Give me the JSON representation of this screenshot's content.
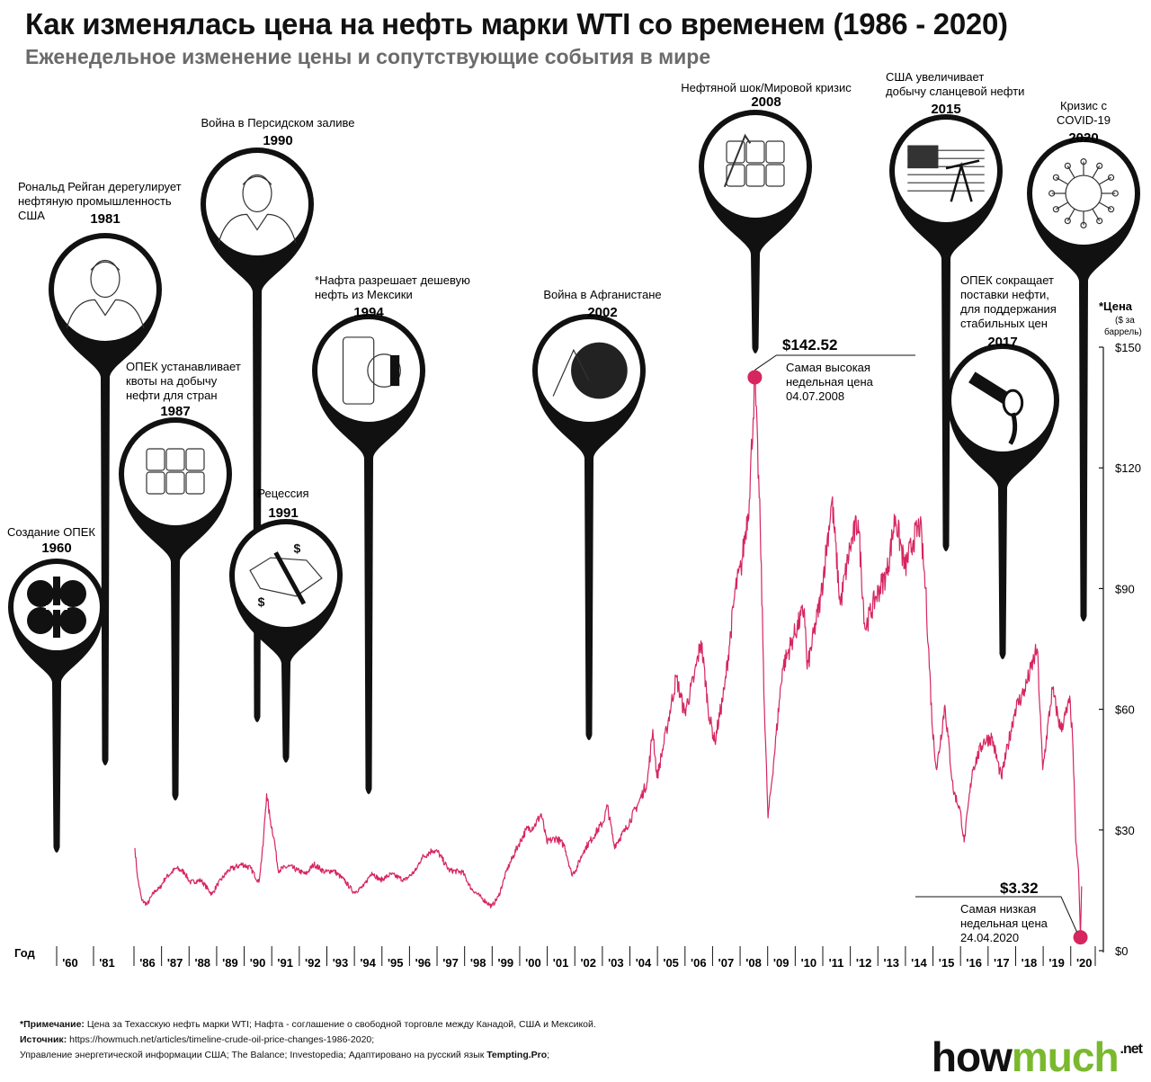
{
  "title": "Как изменялась цена на нефть марки WTI со временем (1986 - 2020)",
  "subtitle": "Еженедельное изменение цены и сопутствующие события в мире",
  "colors": {
    "line": "#d6265f",
    "pin": "#111111",
    "accent_green": "#7ab92e"
  },
  "y_axis": {
    "title": "*Цена",
    "unit": "($ за баррель)",
    "ticks": [
      "$150",
      "$120",
      "$90",
      "$60",
      "$30",
      "$0"
    ]
  },
  "x_axis": {
    "label": "Год",
    "ticks": [
      "'60",
      "'81",
      "'86",
      "'87",
      "'88",
      "'89",
      "'90",
      "'91",
      "'92",
      "'93",
      "'94",
      "'95",
      "'96",
      "'97",
      "'98",
      "'99",
      "'00",
      "'01",
      "'02",
      "'03",
      "'04",
      "'05",
      "'06",
      "'07",
      "'08",
      "'09",
      "'10",
      "'11",
      "'12",
      "'13",
      "'14",
      "'15",
      "'16",
      "'17",
      "'18",
      "'19",
      "'20"
    ]
  },
  "events": [
    {
      "year": "1960",
      "label": "Создание  ОПЕК",
      "icon": "opec-logo-icon"
    },
    {
      "year": "1981",
      "label": "Рональд Рейган дерегулирует нефтяную промышленность США",
      "icon": "reagan-portrait-icon"
    },
    {
      "year": "1987",
      "label": "ОПЕК устанавливает квоты на добычу нефти для стран",
      "icon": "oil-barrels-icon"
    },
    {
      "year": "1990",
      "label": "Война в Персидском заливе",
      "icon": "saddam-portrait-icon"
    },
    {
      "year": "1991",
      "label": "Рецессия",
      "icon": "recession-map-icon"
    },
    {
      "year": "1994",
      "label": "*Нафта разрешает дешевую нефть из Мексики",
      "icon": "mexico-barrel-icon"
    },
    {
      "year": "2002",
      "label": "Война в Афганистане",
      "icon": "afghan-war-icon"
    },
    {
      "year": "2008",
      "label": "Нефтяной шок/Мировой кризис",
      "icon": "stacked-barrels-icon"
    },
    {
      "year": "2015",
      "label": "США увеличивает добычу сланцевой нефти",
      "icon": "usa-pumpjack-icon"
    },
    {
      "year": "2017",
      "label": "ОПЕК сокращает поставки нефти, для поддержания стабильных цен",
      "icon": "pouring-barrel-icon"
    },
    {
      "year": "2020",
      "label": "Кризис с COVID-19",
      "icon": "virus-icon"
    }
  ],
  "annotations": {
    "high": {
      "value": "$142.52",
      "label": "Самая высокая недельная цена",
      "date": "04.07.2008"
    },
    "low": {
      "value": "$3.32",
      "label": "Самая низкая недельная цена",
      "date": "24.04.2020"
    }
  },
  "footer": {
    "note_label": "*Примечание:",
    "note": "Цена за Техасскую нефть марки WTI; Нафта - соглашение о свободной торговле между Канадой, США и Мексикой.",
    "source_label": "Источник:",
    "source": "https://howmuch.net/articles/timeline-crude-oil-price-changes-1986-2020;",
    "source2": "Управление энергетической информации США; The Balance; Investopedia; Адаптировано на русский язык ",
    "source2_bold": "Tempting.Pro",
    "source2_end": ";"
  },
  "logo": {
    "how": "how",
    "much": "much",
    "net": ".net"
  },
  "chart_data": {
    "type": "line",
    "title": "Как изменялась цена на нефть марки WTI со временем (1986 - 2020)",
    "ylabel": "*Цена ($ за баррель)",
    "xlabel": "Год",
    "ylim": [
      0,
      150
    ],
    "xlim": [
      1986,
      2020.4
    ],
    "series": [
      {
        "name": "WTI",
        "points": [
          [
            1986.0,
            25.5
          ],
          [
            1986.1,
            18.0
          ],
          [
            1986.25,
            12.5
          ],
          [
            1986.45,
            11.5
          ],
          [
            1986.6,
            13.5
          ],
          [
            1986.75,
            15.0
          ],
          [
            1986.9,
            15.5
          ],
          [
            1987.1,
            18.0
          ],
          [
            1987.5,
            20.5
          ],
          [
            1987.8,
            19.5
          ],
          [
            1988.0,
            17.0
          ],
          [
            1988.4,
            17.5
          ],
          [
            1988.8,
            14.0
          ],
          [
            1989.0,
            16.5
          ],
          [
            1989.4,
            20.0
          ],
          [
            1989.9,
            21.5
          ],
          [
            1990.2,
            20.5
          ],
          [
            1990.5,
            17.0
          ],
          [
            1990.65,
            26.0
          ],
          [
            1990.78,
            39.0
          ],
          [
            1990.9,
            33.0
          ],
          [
            1991.05,
            28.0
          ],
          [
            1991.2,
            20.0
          ],
          [
            1991.6,
            21.0
          ],
          [
            1991.9,
            20.0
          ],
          [
            1992.2,
            19.0
          ],
          [
            1992.5,
            21.5
          ],
          [
            1992.9,
            19.5
          ],
          [
            1993.2,
            20.0
          ],
          [
            1993.6,
            17.5
          ],
          [
            1993.95,
            14.5
          ],
          [
            1994.3,
            16.0
          ],
          [
            1994.6,
            19.5
          ],
          [
            1994.9,
            17.5
          ],
          [
            1995.3,
            19.0
          ],
          [
            1995.8,
            17.5
          ],
          [
            1996.2,
            20.0
          ],
          [
            1996.4,
            23.0
          ],
          [
            1996.8,
            25.0
          ],
          [
            1997.0,
            24.5
          ],
          [
            1997.4,
            20.0
          ],
          [
            1997.9,
            19.5
          ],
          [
            1998.2,
            15.5
          ],
          [
            1998.6,
            13.0
          ],
          [
            1998.95,
            11.0
          ],
          [
            1999.2,
            13.5
          ],
          [
            1999.5,
            20.0
          ],
          [
            1999.9,
            26.0
          ],
          [
            2000.2,
            30.0
          ],
          [
            2000.5,
            31.0
          ],
          [
            2000.75,
            34.0
          ],
          [
            2000.95,
            27.0
          ],
          [
            2001.3,
            28.0
          ],
          [
            2001.6,
            26.0
          ],
          [
            2001.85,
            19.0
          ],
          [
            2002.0,
            20.0
          ],
          [
            2002.3,
            25.0
          ],
          [
            2002.7,
            29.0
          ],
          [
            2003.0,
            32.0
          ],
          [
            2003.15,
            36.0
          ],
          [
            2003.4,
            26.0
          ],
          [
            2003.8,
            30.0
          ],
          [
            2004.3,
            37.0
          ],
          [
            2004.6,
            42.0
          ],
          [
            2004.8,
            55.0
          ],
          [
            2004.95,
            43.0
          ],
          [
            2005.3,
            55.0
          ],
          [
            2005.65,
            68.0
          ],
          [
            2005.95,
            59.0
          ],
          [
            2006.3,
            68.0
          ],
          [
            2006.55,
            77.0
          ],
          [
            2006.85,
            58.0
          ],
          [
            2007.05,
            52.0
          ],
          [
            2007.4,
            65.0
          ],
          [
            2007.8,
            90.0
          ],
          [
            2008.0,
            95.0
          ],
          [
            2008.3,
            112.0
          ],
          [
            2008.5,
            142.52
          ],
          [
            2008.7,
            105.0
          ],
          [
            2008.85,
            60.0
          ],
          [
            2008.98,
            33.0
          ],
          [
            2009.2,
            48.0
          ],
          [
            2009.5,
            70.0
          ],
          [
            2009.9,
            78.0
          ],
          [
            2010.3,
            85.0
          ],
          [
            2010.4,
            70.0
          ],
          [
            2010.9,
            88.0
          ],
          [
            2011.3,
            112.0
          ],
          [
            2011.6,
            86.0
          ],
          [
            2011.95,
            100.0
          ],
          [
            2012.25,
            107.0
          ],
          [
            2012.5,
            80.0
          ],
          [
            2012.9,
            88.0
          ],
          [
            2013.3,
            94.0
          ],
          [
            2013.6,
            108.0
          ],
          [
            2013.95,
            95.0
          ],
          [
            2014.25,
            102.0
          ],
          [
            2014.5,
            106.0
          ],
          [
            2014.7,
            90.0
          ],
          [
            2014.95,
            55.0
          ],
          [
            2015.1,
            45.0
          ],
          [
            2015.4,
            61.0
          ],
          [
            2015.7,
            40.0
          ],
          [
            2015.95,
            35.0
          ],
          [
            2016.1,
            27.0
          ],
          [
            2016.4,
            45.0
          ],
          [
            2016.8,
            52.0
          ],
          [
            2017.1,
            53.0
          ],
          [
            2017.45,
            43.0
          ],
          [
            2017.95,
            60.0
          ],
          [
            2018.3,
            65.0
          ],
          [
            2018.75,
            75.0
          ],
          [
            2018.95,
            45.0
          ],
          [
            2019.3,
            65.0
          ],
          [
            2019.6,
            55.0
          ],
          [
            2019.95,
            62.0
          ],
          [
            2020.05,
            50.0
          ],
          [
            2020.15,
            27.0
          ],
          [
            2020.25,
            20.0
          ],
          [
            2020.32,
            3.32
          ],
          [
            2020.36,
            16.0
          ]
        ]
      }
    ],
    "annotations": [
      {
        "x": 2008.5,
        "y": 142.52,
        "text": "$142.52"
      },
      {
        "x": 2020.32,
        "y": 3.32,
        "text": "$3.32"
      }
    ]
  }
}
